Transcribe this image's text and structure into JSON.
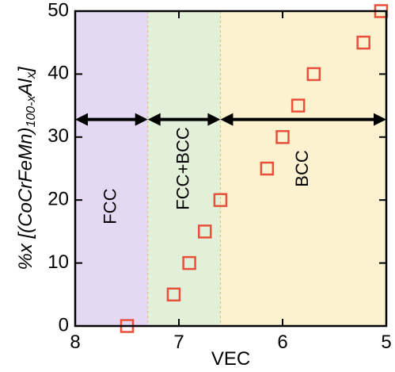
{
  "chart_data": {
    "type": "scatter",
    "xlabel": "VEC",
    "ylabel_parts": [
      "%x [(CoCrFeMn)",
      "100-x",
      "Al",
      "x",
      "]"
    ],
    "xlim": [
      8,
      5
    ],
    "ylim": [
      0,
      50
    ],
    "xticks": [
      8,
      7,
      6,
      5
    ],
    "yticks": [
      0,
      10,
      20,
      30,
      40,
      50
    ],
    "regions": [
      {
        "label": "FCC",
        "x_start": 8.0,
        "x_end": 7.3,
        "color": "#e4d8f2"
      },
      {
        "label": "FCC+BCC",
        "x_start": 7.3,
        "x_end": 6.6,
        "color": "#e2efd9"
      },
      {
        "label": "BCC",
        "x_start": 6.6,
        "x_end": 5.0,
        "color": "#fcf2cf"
      }
    ],
    "arrow_y": 32.8,
    "series": [
      {
        "marker_color": "#e8503a",
        "points": [
          {
            "x": 7.5,
            "y": 0
          },
          {
            "x": 7.05,
            "y": 5
          },
          {
            "x": 6.9,
            "y": 10
          },
          {
            "x": 6.75,
            "y": 15
          },
          {
            "x": 6.6,
            "y": 20
          },
          {
            "x": 6.15,
            "y": 25
          },
          {
            "x": 6.0,
            "y": 30
          },
          {
            "x": 5.85,
            "y": 35
          },
          {
            "x": 5.7,
            "y": 40
          },
          {
            "x": 5.22,
            "y": 45
          },
          {
            "x": 5.05,
            "y": 50
          }
        ]
      }
    ]
  }
}
